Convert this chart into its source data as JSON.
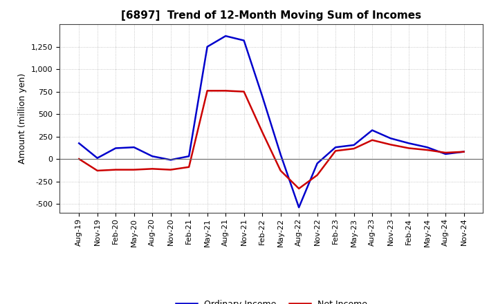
{
  "title": "[6897]  Trend of 12-Month Moving Sum of Incomes",
  "ylabel": "Amount (million yen)",
  "x_labels": [
    "Aug-19",
    "Nov-19",
    "Feb-20",
    "May-20",
    "Aug-20",
    "Nov-20",
    "Feb-21",
    "May-21",
    "Aug-21",
    "Nov-21",
    "Feb-22",
    "May-22",
    "Aug-22",
    "Nov-22",
    "Feb-23",
    "May-23",
    "Aug-23",
    "Nov-23",
    "Feb-24",
    "May-24",
    "Aug-24",
    "Nov-24"
  ],
  "ordinary_income": [
    175,
    10,
    120,
    130,
    30,
    -10,
    30,
    1250,
    1370,
    1320,
    700,
    50,
    -540,
    -50,
    130,
    155,
    320,
    230,
    175,
    130,
    55,
    80
  ],
  "net_income": [
    0,
    -130,
    -120,
    -120,
    -110,
    -120,
    -90,
    760,
    760,
    750,
    300,
    -130,
    -330,
    -180,
    90,
    115,
    210,
    160,
    120,
    100,
    70,
    80
  ],
  "ordinary_color": "#0000cc",
  "net_color": "#cc0000",
  "line_width": 1.8,
  "bg_color": "#ffffff",
  "grid_color": "#999999",
  "ylim": [
    -600,
    1500
  ],
  "yticks": [
    -500,
    -250,
    0,
    250,
    500,
    750,
    1000,
    1250
  ],
  "legend_labels": [
    "Ordinary Income",
    "Net Income"
  ],
  "title_fontsize": 11,
  "axis_fontsize": 8,
  "label_fontsize": 9
}
